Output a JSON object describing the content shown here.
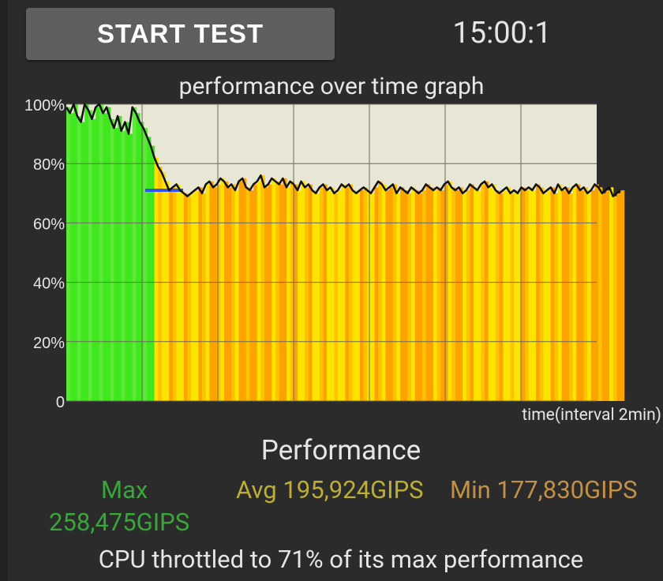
{
  "header": {
    "start_button_label": "START TEST",
    "timer": "15:00:1"
  },
  "graph": {
    "title": "performance over time graph",
    "time_axis_label": "time(interval 2min)"
  },
  "chart_data": {
    "type": "area",
    "title": "performance over time graph",
    "xlabel": "time(interval 2min)",
    "ylabel": "",
    "ylim": [
      0,
      100
    ],
    "yticks": [
      "100%",
      "80%",
      "60%",
      "40%",
      "20%",
      "0"
    ],
    "x_interval_minutes": 2,
    "x_gridlines": 7,
    "grid": true,
    "colors": {
      "background": "#e8e6d4",
      "unthrottled": "#3ee81c",
      "throttled_light": "#fde400",
      "throttled_dark": "#fda300",
      "line": "#111111",
      "average_marker": "#3050f0"
    },
    "series": [
      {
        "values": [
          99,
          97,
          100,
          96,
          94,
          100,
          98,
          95,
          99,
          100,
          97,
          99,
          95,
          92,
          96,
          91,
          94,
          90,
          99,
          97,
          94,
          92,
          89,
          86,
          82,
          79,
          77,
          74,
          71,
          72,
          73,
          71,
          70,
          69,
          70,
          71,
          72,
          70,
          73,
          74,
          72,
          73,
          75,
          74,
          72,
          73,
          71,
          74,
          75,
          72,
          71,
          73,
          74,
          76,
          72,
          73,
          75,
          74,
          73,
          75,
          72,
          74,
          73,
          71,
          74,
          72,
          73,
          71,
          70,
          72,
          73,
          71,
          72,
          70,
          71,
          73,
          72,
          73,
          71,
          70,
          71,
          72,
          71,
          70,
          72,
          74,
          73,
          71,
          72,
          73,
          70,
          72,
          71,
          70,
          72,
          71,
          70,
          71,
          73,
          72,
          71,
          72,
          71,
          73,
          74,
          72,
          71,
          72,
          70,
          71,
          73,
          72,
          71,
          73,
          74,
          72,
          73,
          71,
          70,
          71,
          72,
          70,
          71,
          70,
          72,
          71,
          72,
          71,
          73,
          72,
          70,
          71,
          72,
          70,
          73,
          71,
          72,
          70,
          72,
          73,
          71,
          72,
          70,
          71,
          73,
          72,
          70,
          71,
          72,
          69,
          70,
          71
        ]
      }
    ]
  },
  "performance": {
    "title": "Performance",
    "max_label": "Max",
    "max_value": "258,475GIPS",
    "avg_text": "Avg 195,924GIPS",
    "min_text": "Min 177,830GIPS"
  },
  "summary": "CPU throttled to 71% of its max performance"
}
